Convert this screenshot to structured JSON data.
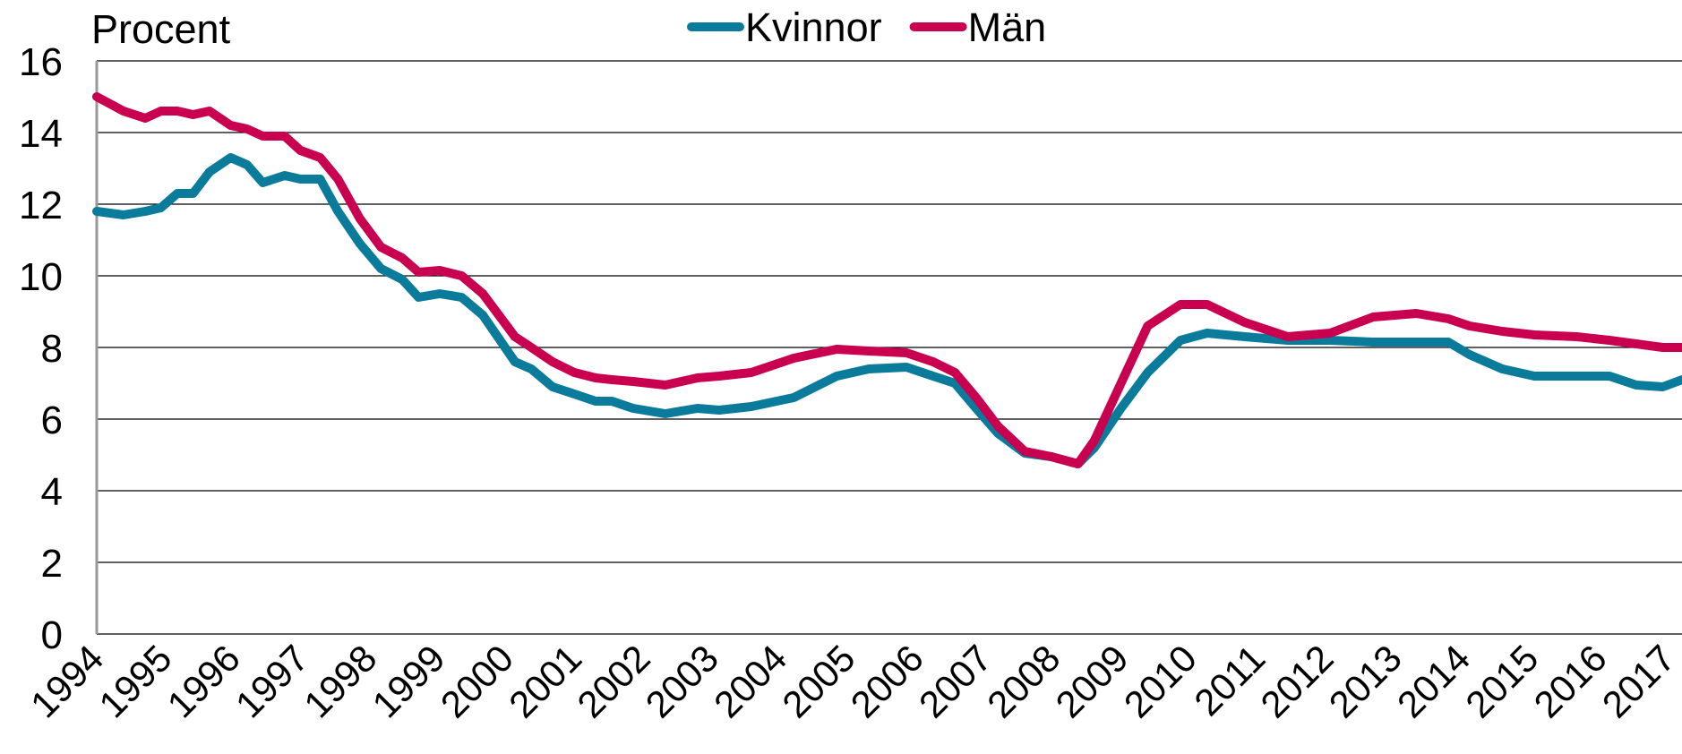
{
  "chart_data": {
    "type": "line",
    "title": "Procent",
    "x": [
      1994.0,
      1994.39,
      1994.71,
      1994.94,
      1995.18,
      1995.41,
      1995.65,
      1995.96,
      1996.2,
      1996.43,
      1996.75,
      1996.98,
      1997.27,
      1997.53,
      1997.85,
      1998.16,
      1998.47,
      1998.71,
      1999.02,
      1999.34,
      1999.65,
      2000.12,
      2000.36,
      2000.67,
      2000.99,
      2001.3,
      2001.54,
      2001.85,
      2002.32,
      2002.79,
      2003.11,
      2003.58,
      2004.2,
      2004.83,
      2005.3,
      2005.85,
      2006.24,
      2006.56,
      2006.87,
      2007.19,
      2007.58,
      2007.97,
      2008.36,
      2008.6,
      2008.99,
      2009.38,
      2009.86,
      2010.25,
      2010.8,
      2011.43,
      2012.05,
      2012.68,
      2013.31,
      2013.78,
      2014.09,
      2014.57,
      2015.04,
      2015.66,
      2016.14,
      2016.53,
      2016.92,
      2017.2
    ],
    "series": [
      {
        "name": "Kvinnor",
        "color": "#0b7b9b",
        "values": [
          11.8,
          11.7,
          11.8,
          11.9,
          12.3,
          12.3,
          12.9,
          13.3,
          13.1,
          12.6,
          12.8,
          12.7,
          12.7,
          11.8,
          10.9,
          10.2,
          9.9,
          9.4,
          9.5,
          9.4,
          8.9,
          7.6,
          7.4,
          6.9,
          6.7,
          6.5,
          6.5,
          6.3,
          6.15,
          6.3,
          6.25,
          6.35,
          6.6,
          7.2,
          7.4,
          7.45,
          7.2,
          7.0,
          6.3,
          5.6,
          5.05,
          4.95,
          4.75,
          5.2,
          6.3,
          7.3,
          8.2,
          8.4,
          8.3,
          8.2,
          8.2,
          8.15,
          8.15,
          8.15,
          7.8,
          7.4,
          7.2,
          7.2,
          7.2,
          6.95,
          6.9,
          7.1
        ]
      },
      {
        "name": "Män",
        "color": "#c8004f",
        "values": [
          15.0,
          14.6,
          14.4,
          14.6,
          14.6,
          14.5,
          14.6,
          14.2,
          14.1,
          13.9,
          13.9,
          13.5,
          13.3,
          12.7,
          11.6,
          10.8,
          10.5,
          10.1,
          10.15,
          10.0,
          9.5,
          8.3,
          8.0,
          7.6,
          7.3,
          7.15,
          7.1,
          7.05,
          6.95,
          7.15,
          7.2,
          7.3,
          7.7,
          7.95,
          7.9,
          7.85,
          7.6,
          7.3,
          6.6,
          5.8,
          5.1,
          4.95,
          4.75,
          5.4,
          7.0,
          8.6,
          9.2,
          9.2,
          8.7,
          8.3,
          8.4,
          8.85,
          8.95,
          8.8,
          8.6,
          8.45,
          8.35,
          8.3,
          8.2,
          8.1,
          8.0,
          8.0
        ]
      }
    ],
    "xlim": [
      1994,
      2017.2
    ],
    "xticks": [
      1994,
      1995,
      1996,
      1997,
      1998,
      1999,
      2000,
      2001,
      2002,
      2003,
      2004,
      2005,
      2006,
      2007,
      2008,
      2009,
      2010,
      2011,
      2012,
      2013,
      2014,
      2015,
      2016,
      2017
    ],
    "ylim": [
      0,
      16
    ],
    "yticks": [
      0,
      2,
      4,
      6,
      8,
      10,
      12,
      14,
      16
    ],
    "grid": true
  }
}
